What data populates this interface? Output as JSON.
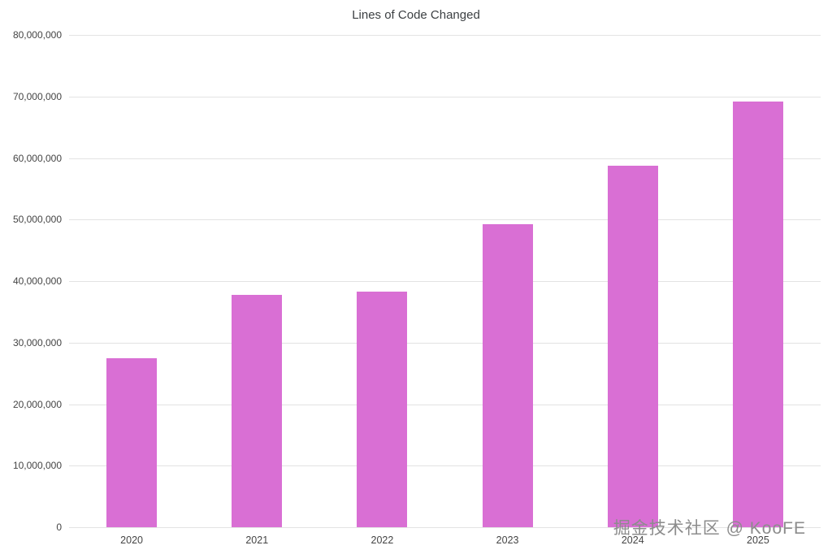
{
  "chart_data": {
    "type": "bar",
    "title": "Lines of Code Changed",
    "categories": [
      "2020",
      "2021",
      "2022",
      "2023",
      "2024",
      "2025"
    ],
    "values": [
      27500000,
      37700000,
      38300000,
      49200000,
      58800000,
      69200000
    ],
    "xlabel": "",
    "ylabel": "",
    "ylim": [
      0,
      80000000
    ],
    "ytick_step": 10000000,
    "ytick_labels": [
      "0",
      "10,000,000",
      "20,000,000",
      "30,000,000",
      "40,000,000",
      "50,000,000",
      "60,000,000",
      "70,000,000",
      "80,000,000"
    ],
    "grid": true,
    "legend": "none",
    "bar_color": "#d96fd4"
  },
  "watermark": "掘金技术社区 @ KooFE"
}
